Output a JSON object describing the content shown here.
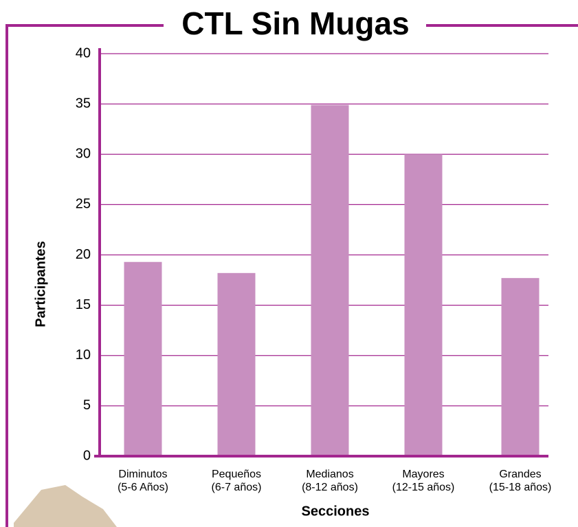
{
  "chart_data": {
    "type": "bar",
    "title": "CTL Sin Mugas",
    "x_label": "Secciones",
    "y_label": "Participantes",
    "categories": [
      [
        "Diminutos",
        "(5-6 Años)"
      ],
      [
        "Pequeños",
        "(6-7 años)"
      ],
      [
        "Medianos",
        "(8-12 años)"
      ],
      [
        "Mayores",
        "(12-15 años)"
      ],
      [
        "Grandes",
        "(15-18 años)"
      ]
    ],
    "values": [
      19.3,
      18.2,
      34.9,
      30,
      17.7
    ],
    "color": "#c88fc0",
    "grid_color": "#a3268f",
    "ylim": [
      0,
      40
    ],
    "yticks": [
      0,
      5,
      10,
      15,
      20,
      25,
      30,
      35,
      40
    ],
    "grid": true
  }
}
